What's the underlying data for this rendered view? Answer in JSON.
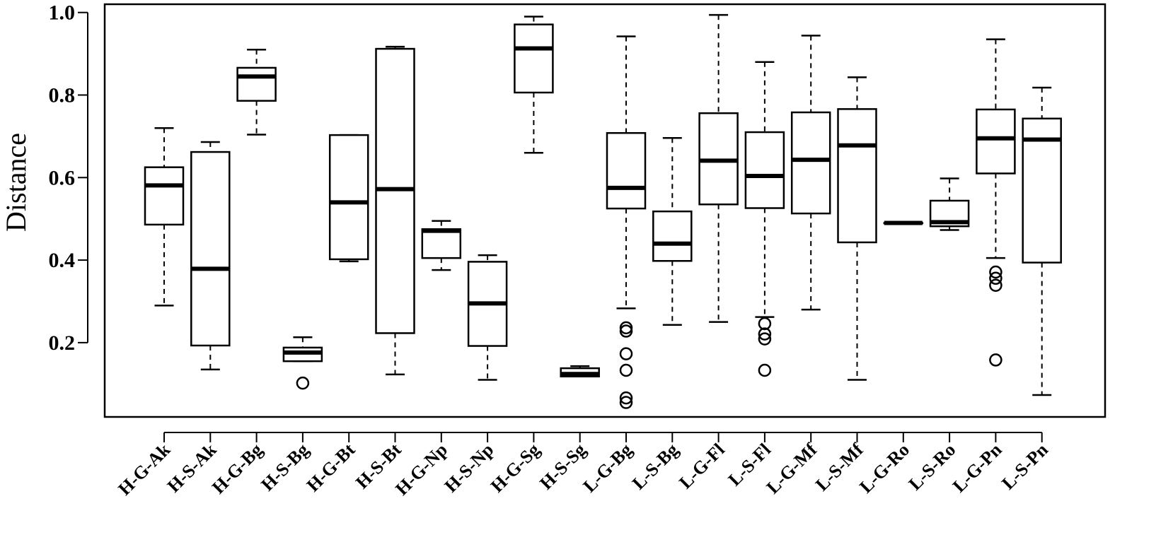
{
  "chart_data": {
    "type": "boxplot",
    "ylabel": "Distance",
    "ylim": [
      0.02,
      1.02
    ],
    "yticks": [
      "0.2",
      "0.4",
      "0.6",
      "0.8",
      "1.0"
    ],
    "categories": [
      "H-G-Ak",
      "H-S-Ak",
      "H-G-Bg",
      "H-S-Bg",
      "H-G-Bt",
      "H-S-Bt",
      "H-G-Np",
      "H-S-Np",
      "H-G-Sg",
      "H-S-Sg",
      "L-G-Bg",
      "L-S-Bg",
      "L-G-Fl",
      "L-S-Fl",
      "L-G-Mf",
      "L-S-Mf",
      "L-G-Ro",
      "L-S-Ro",
      "L-G-Pn",
      "L-S-Pn"
    ],
    "boxes": [
      {
        "whisker_low": 0.29,
        "q1": 0.486,
        "median": 0.581,
        "q3": 0.625,
        "whisker_high": 0.72,
        "outliers": []
      },
      {
        "whisker_low": 0.135,
        "q1": 0.193,
        "median": 0.379,
        "q3": 0.662,
        "whisker_high": 0.686,
        "outliers": []
      },
      {
        "whisker_low": 0.704,
        "q1": 0.786,
        "median": 0.845,
        "q3": 0.866,
        "whisker_high": 0.91,
        "outliers": []
      },
      {
        "whisker_low": 0.155,
        "q1": 0.155,
        "median": 0.176,
        "q3": 0.188,
        "whisker_high": 0.213,
        "outliers": [
          0.102
        ]
      },
      {
        "whisker_low": 0.397,
        "q1": 0.402,
        "median": 0.54,
        "q3": 0.703,
        "whisker_high": 0.703,
        "outliers": []
      },
      {
        "whisker_low": 0.123,
        "q1": 0.223,
        "median": 0.572,
        "q3": 0.912,
        "whisker_high": 0.917,
        "outliers": []
      },
      {
        "whisker_low": 0.376,
        "q1": 0.405,
        "median": 0.471,
        "q3": 0.475,
        "whisker_high": 0.495,
        "outliers": []
      },
      {
        "whisker_low": 0.11,
        "q1": 0.192,
        "median": 0.295,
        "q3": 0.396,
        "whisker_high": 0.412,
        "outliers": []
      },
      {
        "whisker_low": 0.66,
        "q1": 0.806,
        "median": 0.913,
        "q3": 0.971,
        "whisker_high": 0.99,
        "outliers": []
      },
      {
        "whisker_low": 0.118,
        "q1": 0.118,
        "median": 0.124,
        "q3": 0.138,
        "whisker_high": 0.143,
        "outliers": []
      },
      {
        "whisker_low": 0.283,
        "q1": 0.525,
        "median": 0.575,
        "q3": 0.708,
        "whisker_high": 0.942,
        "outliers": [
          0.236,
          0.228,
          0.173,
          0.133,
          0.066,
          0.055
        ]
      },
      {
        "whisker_low": 0.243,
        "q1": 0.398,
        "median": 0.44,
        "q3": 0.518,
        "whisker_high": 0.696,
        "outliers": []
      },
      {
        "whisker_low": 0.25,
        "q1": 0.535,
        "median": 0.641,
        "q3": 0.756,
        "whisker_high": 0.994,
        "outliers": []
      },
      {
        "whisker_low": 0.262,
        "q1": 0.526,
        "median": 0.604,
        "q3": 0.71,
        "whisker_high": 0.88,
        "outliers": [
          0.246,
          0.221,
          0.209,
          0.133
        ]
      },
      {
        "whisker_low": 0.28,
        "q1": 0.513,
        "median": 0.643,
        "q3": 0.758,
        "whisker_high": 0.944,
        "outliers": []
      },
      {
        "whisker_low": 0.11,
        "q1": 0.443,
        "median": 0.678,
        "q3": 0.766,
        "whisker_high": 0.843,
        "outliers": []
      },
      {
        "whisker_low": 0.49,
        "q1": 0.49,
        "median": 0.49,
        "q3": 0.49,
        "whisker_high": 0.49,
        "outliers": []
      },
      {
        "whisker_low": 0.473,
        "q1": 0.482,
        "median": 0.492,
        "q3": 0.544,
        "whisker_high": 0.598,
        "outliers": []
      },
      {
        "whisker_low": 0.405,
        "q1": 0.61,
        "median": 0.695,
        "q3": 0.765,
        "whisker_high": 0.935,
        "outliers": [
          0.371,
          0.356,
          0.339,
          0.158
        ]
      },
      {
        "whisker_low": 0.073,
        "q1": 0.394,
        "median": 0.692,
        "q3": 0.743,
        "whisker_high": 0.818,
        "outliers": []
      }
    ]
  }
}
